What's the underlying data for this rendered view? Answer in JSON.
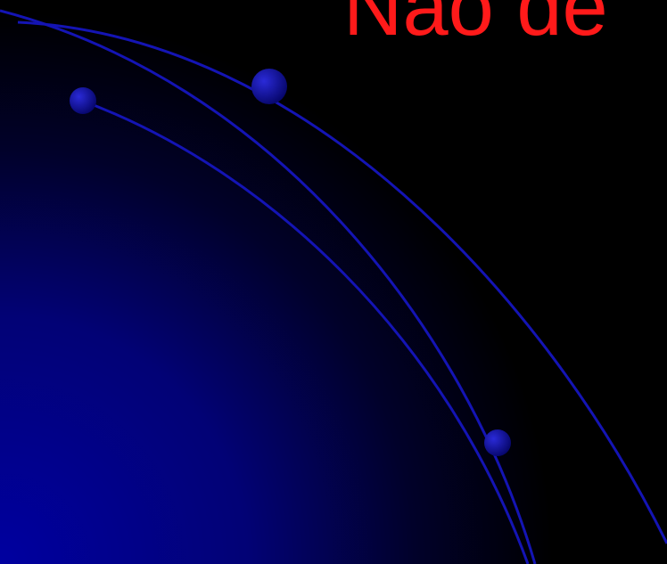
{
  "slide": {
    "title": "Não de"
  },
  "colors": {
    "background": "#000000",
    "glow": "#0a0aa8",
    "arc": "#1313b0",
    "title": "#ff1a1a"
  }
}
